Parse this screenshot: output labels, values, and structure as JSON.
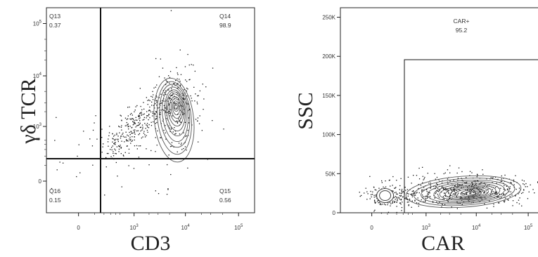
{
  "chart_data": [
    {
      "type": "scatter",
      "subtype": "flow-cytometry-contour",
      "xlabel": "CD3",
      "ylabel": "γδ TCR",
      "x_scale": "biexponential",
      "y_scale": "biexponential",
      "x_ticks": [
        {
          "value": 0,
          "label": "0"
        },
        {
          "value": 1000,
          "label": "10",
          "exp": "3"
        },
        {
          "value": 10000,
          "label": "10",
          "exp": "4"
        },
        {
          "value": 100000,
          "label": "10",
          "exp": "5"
        }
      ],
      "y_ticks": [
        {
          "value": 0,
          "label": "0"
        },
        {
          "value": 1000,
          "label": "10",
          "exp": "3"
        },
        {
          "value": 10000,
          "label": "10",
          "exp": "4"
        },
        {
          "value": 100000,
          "label": "10",
          "exp": "5"
        }
      ],
      "quadrants": [
        {
          "name": "Q13",
          "value": "0.37"
        },
        {
          "name": "Q14",
          "value": "98.9"
        },
        {
          "name": "Q15",
          "value": "0.56"
        },
        {
          "name": "Q16",
          "value": "0.15"
        }
      ],
      "gate_x": 160,
      "gate_y": 130,
      "population": {
        "x": 7500,
        "y": 5000
      }
    },
    {
      "type": "scatter",
      "subtype": "flow-cytometry-contour",
      "xlabel": "CAR",
      "ylabel": "SSC",
      "x_scale": "biexponential",
      "y_scale": "linear",
      "x_ticks": [
        {
          "value": 0,
          "label": "0"
        },
        {
          "value": 1000,
          "label": "10",
          "exp": "3"
        },
        {
          "value": 10000,
          "label": "10",
          "exp": "4"
        },
        {
          "value": 100000,
          "label": "10",
          "exp": "5"
        }
      ],
      "y_ticks": [
        {
          "value": 0,
          "label": "0"
        },
        {
          "value": 50000,
          "label": "50K"
        },
        {
          "value": 100000,
          "label": "100K"
        },
        {
          "value": 150000,
          "label": "150K"
        },
        {
          "value": 200000,
          "label": "200K"
        },
        {
          "value": 250000,
          "label": "250K"
        }
      ],
      "ylim": [
        0,
        262144
      ],
      "gate": {
        "name": "CAR+",
        "value": "95.2",
        "x_min": 370,
        "y_max": 195000
      },
      "population": {
        "x": 6000,
        "y": 27000
      },
      "negative_population": {
        "x": 80,
        "y": 22000
      }
    }
  ]
}
